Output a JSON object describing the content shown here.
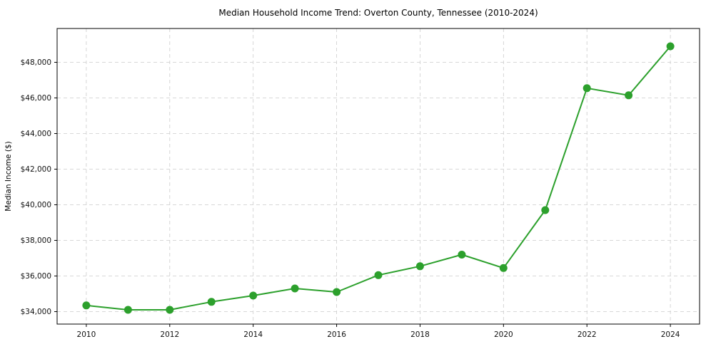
{
  "chart_data": {
    "type": "line",
    "title": "Median Household Income Trend: Overton County, Tennessee (2010-2024)",
    "xlabel": "",
    "ylabel": "Median Income ($)",
    "x": [
      2010,
      2011,
      2012,
      2013,
      2014,
      2015,
      2016,
      2017,
      2018,
      2019,
      2020,
      2021,
      2022,
      2023,
      2024
    ],
    "series": [
      {
        "name": "Median Household Income",
        "values": [
          34350,
          34100,
          34100,
          34550,
          34900,
          35300,
          35100,
          36050,
          36550,
          37200,
          36450,
          39700,
          46550,
          46150,
          48900
        ]
      }
    ],
    "xlim": [
      2009.3,
      2024.7
    ],
    "ylim": [
      33300,
      49900
    ],
    "x_ticks": [
      2010,
      2012,
      2014,
      2016,
      2018,
      2020,
      2022,
      2024
    ],
    "x_tick_labels": [
      "2010",
      "2012",
      "2014",
      "2016",
      "2018",
      "2020",
      "2022",
      "2024"
    ],
    "y_ticks": [
      34000,
      36000,
      38000,
      40000,
      42000,
      44000,
      46000,
      48000
    ],
    "y_tick_labels": [
      "$34,000",
      "$36,000",
      "$38,000",
      "$40,000",
      "$42,000",
      "$44,000",
      "$46,000",
      "$48,000"
    ],
    "grid": true,
    "grid_style": "dashed",
    "legend": "none",
    "marker": "circle",
    "colors": {
      "line": "#2ca02c",
      "marker": "#2ca02c",
      "grid": "#cccccc",
      "axis": "#000000",
      "background": "#ffffff"
    }
  }
}
